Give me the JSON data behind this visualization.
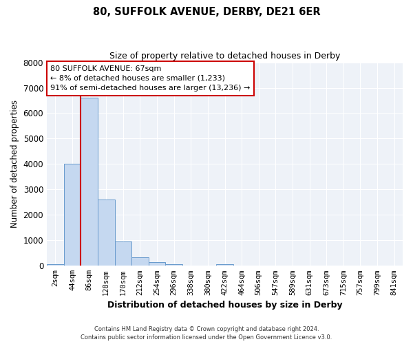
{
  "title": "80, SUFFOLK AVENUE, DERBY, DE21 6ER",
  "subtitle": "Size of property relative to detached houses in Derby",
  "xlabel": "Distribution of detached houses by size in Derby",
  "ylabel": "Number of detached properties",
  "bar_labels": [
    "2sqm",
    "44sqm",
    "86sqm",
    "128sqm",
    "170sqm",
    "212sqm",
    "254sqm",
    "296sqm",
    "338sqm",
    "380sqm",
    "422sqm",
    "464sqm",
    "506sqm",
    "547sqm",
    "589sqm",
    "631sqm",
    "673sqm",
    "715sqm",
    "757sqm",
    "799sqm",
    "841sqm"
  ],
  "bar_values": [
    50,
    4000,
    6600,
    2600,
    960,
    320,
    130,
    70,
    10,
    0,
    50,
    0,
    0,
    0,
    0,
    0,
    0,
    0,
    0,
    0,
    0
  ],
  "bar_color": "#c5d8f0",
  "bar_edge_color": "#6699cc",
  "fig_bg_color": "#ffffff",
  "plot_bg_color": "#eef2f8",
  "ylim": [
    0,
    8000
  ],
  "yticks": [
    0,
    1000,
    2000,
    3000,
    4000,
    5000,
    6000,
    7000,
    8000
  ],
  "vline_color": "#cc0000",
  "annotation_title": "80 SUFFOLK AVENUE: 67sqm",
  "annotation_line1": "← 8% of detached houses are smaller (1,233)",
  "annotation_line2": "91% of semi-detached houses are larger (13,236) →",
  "annotation_box_color": "#ffffff",
  "annotation_border_color": "#cc0000",
  "footer1": "Contains HM Land Registry data © Crown copyright and database right 2024.",
  "footer2": "Contains public sector information licensed under the Open Government Licence v3.0."
}
